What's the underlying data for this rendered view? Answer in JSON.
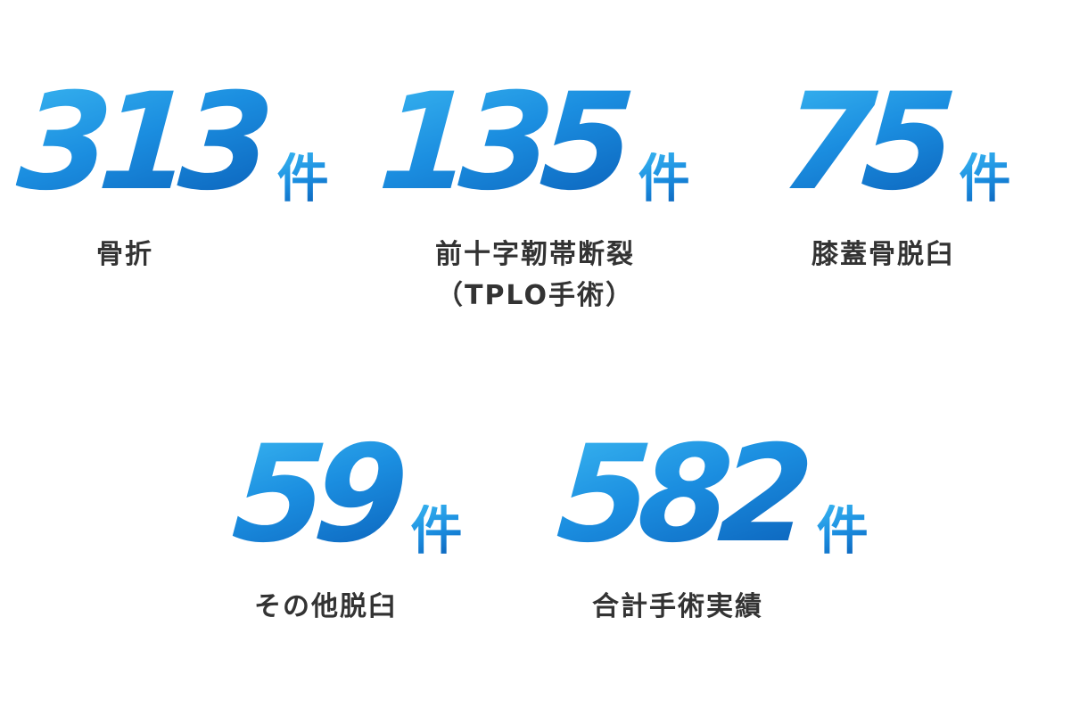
{
  "colors": {
    "number_gradient_light": "#39b5f0",
    "number_gradient_dark": "#0a5fb8",
    "label_text": "#333333",
    "background": "#ffffff"
  },
  "stats": [
    {
      "value": "313",
      "unit": "件",
      "label_lines": [
        "骨折"
      ]
    },
    {
      "value": "135",
      "unit": "件",
      "label_lines": [
        "前十字靭帯断裂",
        "（TPLO手術）"
      ]
    },
    {
      "value": "75",
      "unit": "件",
      "label_lines": [
        "膝蓋骨脱臼"
      ]
    },
    {
      "value": "59",
      "unit": "件",
      "label_lines": [
        "その他脱臼"
      ]
    },
    {
      "value": "582",
      "unit": "件",
      "label_lines": [
        "合計手術実績"
      ]
    }
  ]
}
